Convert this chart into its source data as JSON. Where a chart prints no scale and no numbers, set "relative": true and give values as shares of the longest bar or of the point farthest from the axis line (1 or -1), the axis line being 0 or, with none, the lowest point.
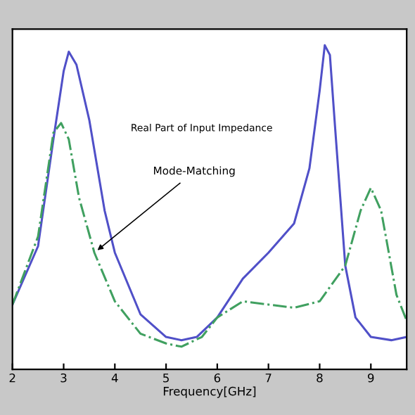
{
  "chart_data": {
    "type": "line",
    "xlabel": "Frequency[GHz]",
    "relative": true,
    "xlim": [
      2,
      9.7
    ],
    "xticks": [
      2,
      3,
      4,
      5,
      6,
      7,
      8,
      9
    ],
    "grid": false,
    "annotations": [
      "Real Part of Input Impedance",
      {
        "text": "Mode-Matching",
        "x": 3.6,
        "y": 0.36
      }
    ],
    "series": [
      {
        "color": "#5050c8",
        "line_style": "solid",
        "x": [
          2.0,
          2.5,
          2.8,
          3.0,
          3.1,
          3.25,
          3.5,
          3.8,
          4.0,
          4.5,
          5.0,
          5.3,
          5.6,
          6.0,
          6.5,
          7.0,
          7.5,
          7.8,
          8.0,
          8.1,
          8.2,
          8.3,
          8.5,
          8.7,
          9.0,
          9.4,
          9.7
        ],
        "values": [
          0.2,
          0.38,
          0.71,
          0.92,
          0.98,
          0.94,
          0.77,
          0.49,
          0.36,
          0.17,
          0.1,
          0.09,
          0.1,
          0.16,
          0.28,
          0.36,
          0.45,
          0.62,
          0.86,
          1.0,
          0.97,
          0.75,
          0.32,
          0.16,
          0.1,
          0.09,
          0.1
        ]
      },
      {
        "color": "#40a060",
        "line_style": "dashdot",
        "x": [
          2.0,
          2.5,
          2.8,
          2.95,
          3.1,
          3.3,
          3.6,
          4.0,
          4.5,
          5.0,
          5.3,
          5.7,
          6.0,
          6.5,
          7.0,
          7.5,
          8.0,
          8.5,
          8.8,
          9.0,
          9.2,
          9.5,
          9.7
        ],
        "values": [
          0.2,
          0.41,
          0.73,
          0.76,
          0.71,
          0.53,
          0.36,
          0.21,
          0.11,
          0.08,
          0.07,
          0.1,
          0.16,
          0.21,
          0.2,
          0.19,
          0.21,
          0.32,
          0.49,
          0.56,
          0.49,
          0.23,
          0.15
        ]
      }
    ]
  }
}
